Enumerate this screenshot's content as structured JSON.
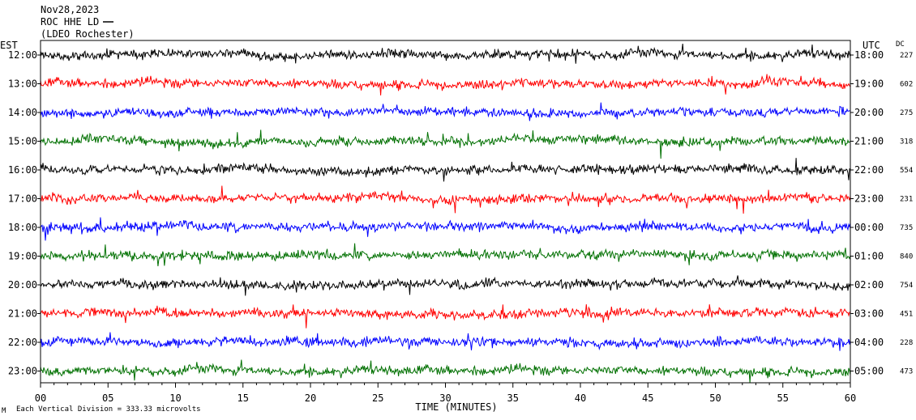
{
  "header": {
    "date": "Nov28,2023",
    "station": "ROC HHE LD",
    "network": "(LDEO Rochester)"
  },
  "left_zone": "EST",
  "right_zone": "UTC",
  "dc_header": "DC",
  "footer": {
    "scale_note": "Each Vertical Division =  333.33 microvolts",
    "corner_mark": "M"
  },
  "chart_data": {
    "type": "line",
    "xlabel": "TIME (MINUTES)",
    "xlim": [
      0,
      60
    ],
    "x_ticks": [
      "00",
      "05",
      "10",
      "15",
      "20",
      "25",
      "30",
      "35",
      "40",
      "45",
      "50",
      "55",
      "60"
    ],
    "trace_colors": [
      "#000000",
      "#ff0000",
      "#0000ff",
      "#007000"
    ],
    "rows": [
      {
        "est": "12:00",
        "utc": "18:00",
        "dc": "227",
        "color": "#000000"
      },
      {
        "est": "13:00",
        "utc": "19:00",
        "dc": "602",
        "color": "#ff0000"
      },
      {
        "est": "14:00",
        "utc": "20:00",
        "dc": "275",
        "color": "#0000ff"
      },
      {
        "est": "15:00",
        "utc": "21:00",
        "dc": "318",
        "color": "#007000"
      },
      {
        "est": "16:00",
        "utc": "22:00",
        "dc": "554",
        "color": "#000000"
      },
      {
        "est": "17:00",
        "utc": "23:00",
        "dc": "231",
        "color": "#ff0000"
      },
      {
        "est": "18:00",
        "utc": "00:00",
        "dc": "735",
        "color": "#0000ff"
      },
      {
        "est": "19:00",
        "utc": "01:00",
        "dc": "840",
        "color": "#007000"
      },
      {
        "est": "20:00",
        "utc": "02:00",
        "dc": "754",
        "color": "#000000"
      },
      {
        "est": "21:00",
        "utc": "03:00",
        "dc": "451",
        "color": "#ff0000"
      },
      {
        "est": "22:00",
        "utc": "04:00",
        "dc": "228",
        "color": "#0000ff"
      },
      {
        "est": "23:00",
        "utc": "05:00",
        "dc": "473",
        "color": "#007000"
      }
    ]
  }
}
